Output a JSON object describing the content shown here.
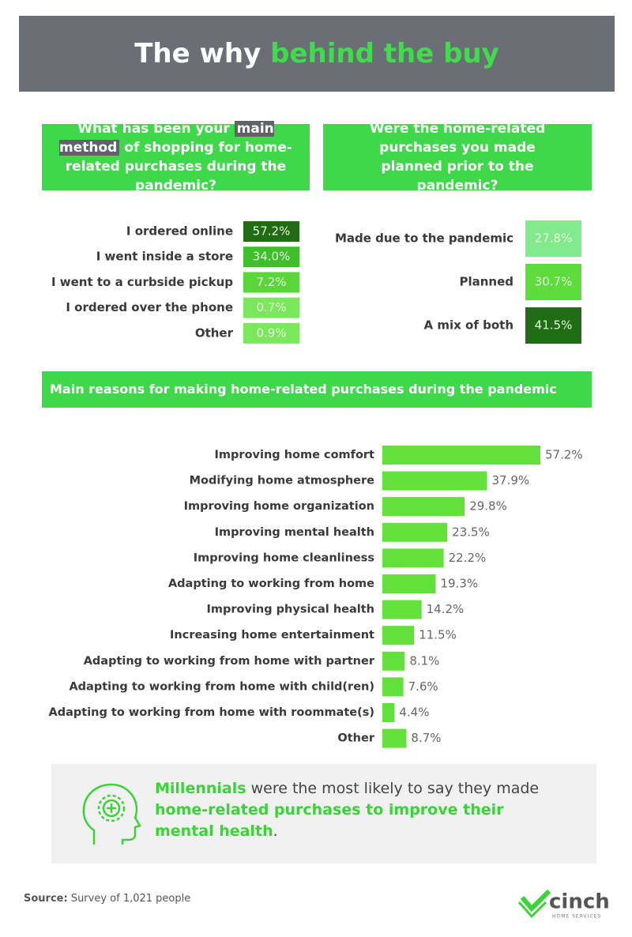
{
  "header": {
    "title_parts": [
      "The why ",
      "behind the buy"
    ]
  },
  "chart_data": [
    {
      "type": "heatmap",
      "title_parts": [
        "What has been your ",
        "main method",
        " of shopping for home-related purchases during the pandemic?"
      ],
      "categories": [
        "I ordered online",
        "I went inside a store",
        "I went to a curbside pickup",
        "I ordered over the phone",
        "Other"
      ],
      "values": [
        57.2,
        34.0,
        7.2,
        0.7,
        0.9
      ],
      "value_labels": [
        "57.2%",
        "34.0%",
        "7.2%",
        "0.7%",
        "0.9%"
      ],
      "colors": [
        "#216b12",
        "#3fbd2b",
        "#5ad53a",
        "#7be85b",
        "#7be85b"
      ]
    },
    {
      "type": "heatmap",
      "title_parts": [
        "Were the home-related purchases you made planned prior to the pandemic?"
      ],
      "categories": [
        "Made due to the pandemic",
        "Planned",
        "A mix of both"
      ],
      "values": [
        27.8,
        30.7,
        41.5
      ],
      "value_labels": [
        "27.8%",
        "30.7%",
        "41.5%"
      ],
      "colors": [
        "#80ea8c",
        "#5edc3c",
        "#1f6d14"
      ]
    },
    {
      "type": "bar",
      "title": "Main reasons for making home-related purchases during the pandemic",
      "categories": [
        "Improving home comfort",
        "Modifying home atmosphere",
        "Improving home organization",
        "Improving mental health",
        "Improving home cleanliness",
        "Adapting to working from home",
        "Improving physical health",
        "Increasing home entertainment",
        "Adapting to working from home with partner",
        "Adapting to working from home with child(ren)",
        "Adapting to working from home with roommate(s)",
        "Other"
      ],
      "values": [
        57.2,
        37.9,
        29.8,
        23.5,
        22.2,
        19.3,
        14.2,
        11.5,
        8.1,
        7.6,
        4.4,
        8.7
      ],
      "value_labels": [
        "57.2%",
        "37.9%",
        "29.8%",
        "23.5%",
        "22.2%",
        "19.3%",
        "14.2%",
        "11.5%",
        "8.1%",
        "7.6%",
        "4.4%",
        "8.7%"
      ],
      "color": "#63e03b"
    }
  ],
  "callout": {
    "parts": [
      "Millennials",
      " were the most likely to say they made ",
      "home-related purchases to improve their mental health",
      "."
    ]
  },
  "source": {
    "label": "Source:",
    "text": " Survey of 1,021 people"
  },
  "logo": {
    "name": "cinch",
    "tagline": "HOME SERVICES"
  }
}
